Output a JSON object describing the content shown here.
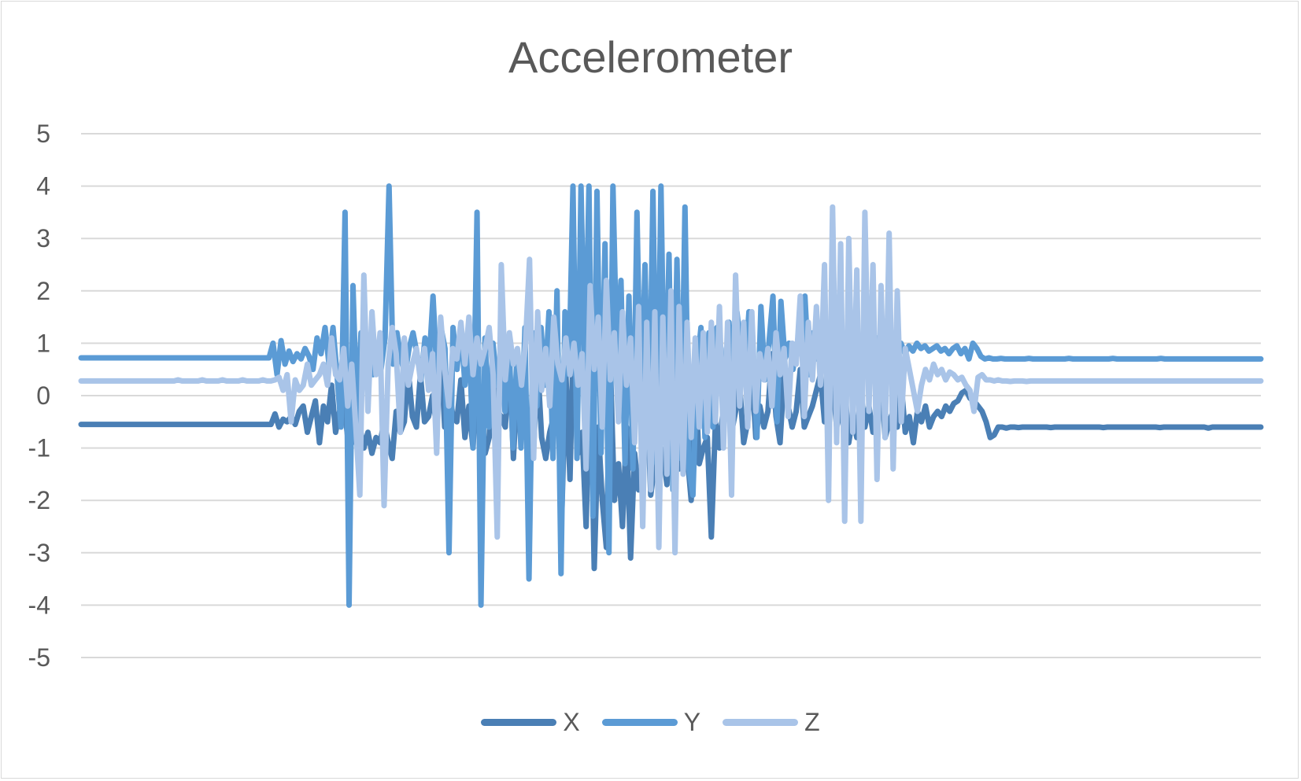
{
  "chart_data": {
    "type": "line",
    "title": "Accelerometer",
    "xlabel": "",
    "ylabel": "",
    "ylim": [
      -5,
      5
    ],
    "yticks": [
      5,
      4,
      3,
      2,
      1,
      0,
      -1,
      -2,
      -3,
      -4,
      -5
    ],
    "grid": true,
    "legend_position": "bottom",
    "series": [
      {
        "name": "X",
        "color": "#4a7fb5",
        "values": [
          -0.55,
          -0.55,
          -0.55,
          -0.55,
          -0.55,
          -0.55,
          -0.55,
          -0.55,
          -0.55,
          -0.55,
          -0.55,
          -0.55,
          -0.55,
          -0.55,
          -0.55,
          -0.55,
          -0.55,
          -0.55,
          -0.55,
          -0.55,
          -0.55,
          -0.55,
          -0.55,
          -0.55,
          -0.55,
          -0.55,
          -0.55,
          -0.55,
          -0.55,
          -0.55,
          -0.55,
          -0.55,
          -0.55,
          -0.55,
          -0.55,
          -0.55,
          -0.55,
          -0.55,
          -0.55,
          -0.55,
          -0.55,
          -0.55,
          -0.55,
          -0.55,
          -0.55,
          -0.55,
          -0.55,
          -0.55,
          -0.35,
          -0.6,
          -0.45,
          -0.5,
          -0.4,
          -0.55,
          -0.3,
          -0.2,
          -0.7,
          -0.4,
          -0.1,
          -0.9,
          -0.2,
          -0.5,
          0.2,
          -0.7,
          -0.3,
          -0.1,
          -0.8,
          -0.4,
          -0.9,
          -0.6,
          -1.0,
          -0.7,
          -1.1,
          -0.8,
          -0.9,
          -0.5,
          -0.9,
          -1.2,
          -0.3,
          -0.7,
          -0.5,
          0.5,
          -0.4,
          -0.6,
          0.4,
          -0.5,
          -0.4,
          0.0,
          -0.6,
          0.9,
          -0.6,
          0.2,
          -0.4,
          -0.5,
          0.3,
          -0.8,
          -0.2,
          -1.0,
          0.5,
          -0.2,
          -1.1,
          -0.8,
          0.8,
          -0.3,
          -0.4,
          -0.6,
          0.7,
          -1.2,
          0.3,
          -0.6,
          -0.8,
          -0.3,
          -1.0,
          0.6,
          -0.8,
          -1.2,
          -0.7,
          -0.4,
          0.8,
          -2.2,
          0.4,
          -1.6,
          1.7,
          -1.1,
          -0.7,
          -2.5,
          0.8,
          -3.3,
          -0.6,
          -2.0,
          -2.9,
          0.6,
          -2.0,
          -1.3,
          -2.5,
          -0.6,
          -3.1,
          -1.1,
          -1.8,
          -1.5,
          0.1,
          -1.9,
          -1.3,
          -0.9,
          -1.1,
          -1.7,
          0.3,
          -1.2,
          -1.4,
          -0.7,
          -1.1,
          -2.0,
          0.4,
          -1.3,
          -1.0,
          -0.8,
          -2.7,
          -0.5,
          -1.0,
          -0.2,
          0.3,
          -0.7,
          -0.3,
          0.2,
          -0.9,
          -0.5,
          0.5,
          -0.8,
          -0.2,
          -0.6,
          -0.3,
          0.8,
          -0.4,
          -0.9,
          0.4,
          -0.2,
          -0.6,
          -0.3,
          0.5,
          -0.6,
          -0.4,
          -0.2,
          0.1,
          0.4,
          -0.5,
          -0.2,
          0.3,
          -0.6,
          -0.3,
          0.2,
          -0.9,
          -0.4,
          -0.8,
          0.1,
          -0.6,
          -0.2,
          -0.7,
          -0.4,
          0.3,
          -0.8,
          -0.5,
          -0.3,
          -0.6,
          0.2,
          -0.7,
          -0.4,
          -0.9,
          -0.3,
          -0.5,
          -0.2,
          -0.6,
          -0.4,
          -0.3,
          -0.4,
          -0.2,
          -0.3,
          -0.15,
          -0.1,
          0.05,
          0.1,
          -0.05,
          -0.1,
          -0.2,
          -0.3,
          -0.5,
          -0.8,
          -0.75,
          -0.6,
          -0.6,
          -0.62,
          -0.6,
          -0.6,
          -0.61,
          -0.6,
          -0.6,
          -0.6,
          -0.6,
          -0.6,
          -0.6,
          -0.6,
          -0.61,
          -0.6,
          -0.6,
          -0.6,
          -0.6,
          -0.6,
          -0.6,
          -0.6,
          -0.6,
          -0.6,
          -0.6,
          -0.6,
          -0.6,
          -0.61,
          -0.6,
          -0.6,
          -0.6,
          -0.6,
          -0.6,
          -0.6,
          -0.6,
          -0.6,
          -0.6,
          -0.6,
          -0.6,
          -0.6,
          -0.6,
          -0.61,
          -0.6,
          -0.6,
          -0.6,
          -0.6,
          -0.6,
          -0.6,
          -0.6,
          -0.6,
          -0.6,
          -0.6,
          -0.6,
          -0.62,
          -0.6,
          -0.6,
          -0.6,
          -0.6,
          -0.6,
          -0.6,
          -0.6,
          -0.6,
          -0.6,
          -0.6,
          -0.6,
          -0.6,
          -0.6
        ]
      },
      {
        "name": "Y",
        "color": "#5b9bd5",
        "values": [
          0.72,
          0.72,
          0.72,
          0.72,
          0.72,
          0.72,
          0.72,
          0.72,
          0.72,
          0.72,
          0.72,
          0.72,
          0.72,
          0.72,
          0.72,
          0.72,
          0.72,
          0.72,
          0.72,
          0.72,
          0.72,
          0.72,
          0.72,
          0.72,
          0.72,
          0.72,
          0.72,
          0.72,
          0.72,
          0.72,
          0.72,
          0.72,
          0.72,
          0.72,
          0.72,
          0.72,
          0.72,
          0.72,
          0.72,
          0.72,
          0.72,
          0.72,
          0.72,
          0.72,
          0.72,
          0.72,
          0.72,
          0.72,
          1.0,
          0.4,
          1.05,
          0.6,
          0.85,
          0.65,
          0.8,
          0.7,
          0.9,
          0.75,
          0.5,
          1.1,
          0.8,
          1.3,
          0.6,
          1.3,
          0.4,
          -0.6,
          3.5,
          -4.0,
          2.1,
          -0.5,
          1.2,
          0.3,
          0.8,
          0.4,
          0.9,
          0.5,
          1.1,
          4.0,
          0.6,
          1.2,
          0.7,
          0.4,
          0.9,
          1.2,
          0.8,
          0.3,
          1.1,
          0.6,
          1.9,
          0.4,
          1.3,
          0.9,
          -3.0,
          1.3,
          0.5,
          1.3,
          0.2,
          1.2,
          -1.0,
          3.5,
          -4.0,
          1.1,
          -0.6,
          1.0,
          0.2,
          0.9,
          -0.3,
          1.0,
          -1.0,
          0.8,
          -1.0,
          1.3,
          -3.5,
          1.2,
          -0.2,
          1.3,
          0.2,
          1.6,
          -1.2,
          2.0,
          -3.4,
          1.6,
          0.4,
          4.0,
          -1.2,
          4.0,
          0.2,
          4.0,
          -2.3,
          3.9,
          -1.1,
          2.9,
          -3.0,
          4.0,
          0.6,
          2.2,
          -1.3,
          1.9,
          -1.4,
          3.5,
          -0.5,
          2.5,
          -1.0,
          3.9,
          -1.3,
          4.0,
          -0.9,
          2.7,
          -1.8,
          2.6,
          -1.2,
          3.6,
          -1.4,
          -1.9,
          0.5,
          1.3,
          -0.8,
          1.2,
          -0.6,
          1.3,
          0.9,
          -0.3,
          1.4,
          0.3,
          1.6,
          0.9,
          0.5,
          1.6,
          0.8,
          -0.8,
          1.7,
          0.3,
          1.0,
          1.9,
          -0.5,
          1.8,
          0.7,
          1.0,
          0.5,
          1.0,
          0.8,
          1.9,
          0.4,
          1.2,
          0.7,
          1.0,
          0.6,
          1.2,
          0.9,
          1.4,
          0.8,
          1.1,
          0.7,
          1.2,
          0.5,
          1.1,
          0.9,
          1.2,
          0.6,
          1.1,
          0.8,
          1.0,
          0.7,
          1.15,
          0.75,
          1.0,
          0.8,
          0.95,
          0.85,
          1.0,
          0.9,
          0.95,
          0.85,
          0.9,
          0.95,
          0.85,
          0.9,
          0.8,
          0.9,
          0.95,
          0.8,
          0.9,
          0.7,
          1.0,
          0.9,
          0.75,
          0.7,
          0.72,
          0.7,
          0.7,
          0.71,
          0.7,
          0.7,
          0.7,
          0.7,
          0.7,
          0.7,
          0.71,
          0.7,
          0.7,
          0.7,
          0.7,
          0.7,
          0.7,
          0.7,
          0.7,
          0.7,
          0.71,
          0.7,
          0.7,
          0.7,
          0.7,
          0.7,
          0.7,
          0.7,
          0.7,
          0.7,
          0.7,
          0.71,
          0.7,
          0.7,
          0.7,
          0.7,
          0.7,
          0.7,
          0.7,
          0.7,
          0.7,
          0.7,
          0.7,
          0.71,
          0.7,
          0.7,
          0.7,
          0.7,
          0.7,
          0.7,
          0.7,
          0.7,
          0.7,
          0.7,
          0.7,
          0.7,
          0.7,
          0.7,
          0.7,
          0.7,
          0.7,
          0.7,
          0.7,
          0.7,
          0.7,
          0.7,
          0.7,
          0.7,
          0.7
        ]
      },
      {
        "name": "Z",
        "color": "#a9c4e8",
        "values": [
          0.28,
          0.28,
          0.28,
          0.28,
          0.28,
          0.28,
          0.28,
          0.28,
          0.28,
          0.28,
          0.28,
          0.28,
          0.28,
          0.28,
          0.28,
          0.28,
          0.28,
          0.28,
          0.28,
          0.28,
          0.28,
          0.28,
          0.28,
          0.28,
          0.3,
          0.28,
          0.28,
          0.28,
          0.28,
          0.28,
          0.3,
          0.28,
          0.28,
          0.28,
          0.28,
          0.3,
          0.28,
          0.28,
          0.28,
          0.28,
          0.3,
          0.28,
          0.28,
          0.28,
          0.28,
          0.3,
          0.28,
          0.28,
          0.3,
          0.35,
          0.1,
          0.4,
          -0.5,
          0.3,
          0.1,
          0.2,
          0.6,
          0.2,
          0.3,
          0.4,
          0.6,
          0.2,
          1.1,
          0.4,
          0.3,
          0.9,
          -0.2,
          0.6,
          -0.6,
          -1.9,
          2.3,
          -0.3,
          1.6,
          0.4,
          1.2,
          -2.1,
          0.6,
          1.3,
          0.8,
          -0.7,
          1.1,
          0.2,
          0.6,
          0.9,
          0.3,
          0.9,
          0.1,
          0.8,
          -1.1,
          1.5,
          0.5,
          -0.2,
          0.9,
          0.7,
          1.4,
          0.6,
          1.5,
          0.4,
          1.1,
          0.6,
          0.9,
          1.3,
          0.4,
          -2.7,
          2.5,
          0.3,
          1.2,
          0.6,
          0.9,
          0.2,
          1.0,
          2.6,
          -1.2,
          1.6,
          0.1,
          0.9,
          -0.2,
          1.5,
          0.6,
          0.3,
          1.1,
          0.4,
          1.0,
          0.2,
          0.8,
          -1.4,
          2.1,
          0.5,
          1.5,
          -0.6,
          2.2,
          0.3,
          1.2,
          -0.5,
          1.6,
          0.2,
          1.1,
          -0.9,
          1.7,
          -2.5,
          1.4,
          -1.8,
          1.6,
          -2.9,
          1.5,
          -1.5,
          2.0,
          -3.0,
          1.7,
          -1.5,
          1.4,
          -0.8,
          1.1,
          -0.6,
          1.2,
          -0.7,
          1.4,
          -0.5,
          1.7,
          -1.0,
          1.4,
          -1.9,
          2.3,
          -0.2,
          1.4,
          -0.6,
          1.6,
          -0.3,
          0.8,
          0.3,
          0.9,
          -0.2,
          1.2,
          0.4,
          0.9,
          -0.4,
          1.0,
          0.6,
          1.9,
          -0.4,
          1.4,
          0.3,
          1.7,
          0.2,
          2.5,
          -2.0,
          3.6,
          -0.9,
          2.9,
          -2.4,
          3.0,
          -0.7,
          2.4,
          -2.4,
          3.5,
          -0.3,
          2.5,
          -1.6,
          2.1,
          -0.8,
          3.1,
          -1.4,
          2.0,
          -0.5,
          0.9,
          0.5,
          0.1,
          -0.3,
          0.2,
          0.5,
          0.3,
          0.6,
          0.4,
          0.5,
          0.3,
          0.45,
          0.4,
          0.3,
          0.35,
          0.2,
          0.1,
          -0.3,
          0.35,
          0.4,
          0.3,
          0.3,
          0.28,
          0.3,
          0.28,
          0.28,
          0.27,
          0.28,
          0.28,
          0.28,
          0.27,
          0.28,
          0.28,
          0.28,
          0.28,
          0.28,
          0.28,
          0.28,
          0.28,
          0.28,
          0.28,
          0.28,
          0.28,
          0.28,
          0.28,
          0.28,
          0.28,
          0.28,
          0.28,
          0.28,
          0.28,
          0.28,
          0.28,
          0.28,
          0.28,
          0.28,
          0.28,
          0.28,
          0.28,
          0.28,
          0.28,
          0.28,
          0.28,
          0.28,
          0.28,
          0.28,
          0.28,
          0.28,
          0.28,
          0.28,
          0.28,
          0.28,
          0.28,
          0.28,
          0.28,
          0.28,
          0.28,
          0.28,
          0.28,
          0.28,
          0.28,
          0.28,
          0.28,
          0.28,
          0.28,
          0.28,
          0.28,
          0.28,
          0.28
        ]
      }
    ]
  }
}
